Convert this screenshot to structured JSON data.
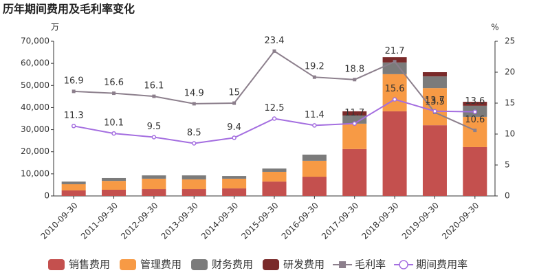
{
  "chart_data": {
    "type": "bar",
    "title": "历年期间费用及毛利率变化",
    "y_label": "万",
    "y2_label": "%",
    "categories": [
      "2010-09-30",
      "2011-09-30",
      "2012-09-30",
      "2013-09-30",
      "2014-09-30",
      "2015-09-30",
      "2016-09-30",
      "2017-09-30",
      "2018-09-30",
      "2019-09-30",
      "2020-09-30"
    ],
    "ylim": [
      0,
      70000
    ],
    "yticks": [
      0,
      {
        "value": 10000,
        "label": "10,000"
      },
      {
        "value": 20000,
        "label": "20,000"
      },
      {
        "value": 30000,
        "label": "30,000"
      },
      {
        "value": 40000,
        "label": "40,000"
      },
      {
        "value": 50000,
        "label": "50,000"
      },
      {
        "value": 60000,
        "label": "60,000"
      },
      {
        "value": 70000,
        "label": "70,000"
      }
    ],
    "y2lim": [
      0,
      25
    ],
    "y2ticks": [
      0,
      5,
      10,
      15,
      20,
      25
    ],
    "series": [
      {
        "name": "销售费用",
        "type": "bar",
        "color": "#c4504e",
        "values": [
          2500,
          2800,
          3100,
          3100,
          3400,
          6500,
          8700,
          21200,
          38300,
          32000,
          22100
        ]
      },
      {
        "name": "管理费用",
        "type": "bar",
        "color": "#f79a45",
        "values": [
          2800,
          4000,
          4700,
          4400,
          4400,
          4400,
          7200,
          11500,
          16800,
          16800,
          13700
        ]
      },
      {
        "name": "财务费用",
        "type": "bar",
        "color": "#7b7b7b",
        "values": [
          1200,
          1300,
          1500,
          1800,
          1200,
          1500,
          2800,
          3700,
          5300,
          5300,
          5000
        ]
      },
      {
        "name": "研发费用",
        "type": "bar",
        "color": "#7a2a2a",
        "values": [
          0,
          0,
          0,
          0,
          0,
          0,
          0,
          1900,
          2400,
          1900,
          1800
        ]
      },
      {
        "name": "毛利率",
        "type": "line",
        "axis": "y2",
        "marker": "square",
        "color": "#8c7f8c",
        "values": [
          16.9,
          16.6,
          16.1,
          14.9,
          15,
          23.4,
          19.2,
          18.8,
          21.7,
          13.5,
          10.6
        ]
      },
      {
        "name": "期间费用率",
        "type": "line",
        "axis": "y2",
        "marker": "circle",
        "color": "#a46ee0",
        "values": [
          11.3,
          10.1,
          9.5,
          8.5,
          9.4,
          12.5,
          11.4,
          11.7,
          15.6,
          13.7,
          13.6
        ]
      }
    ]
  }
}
